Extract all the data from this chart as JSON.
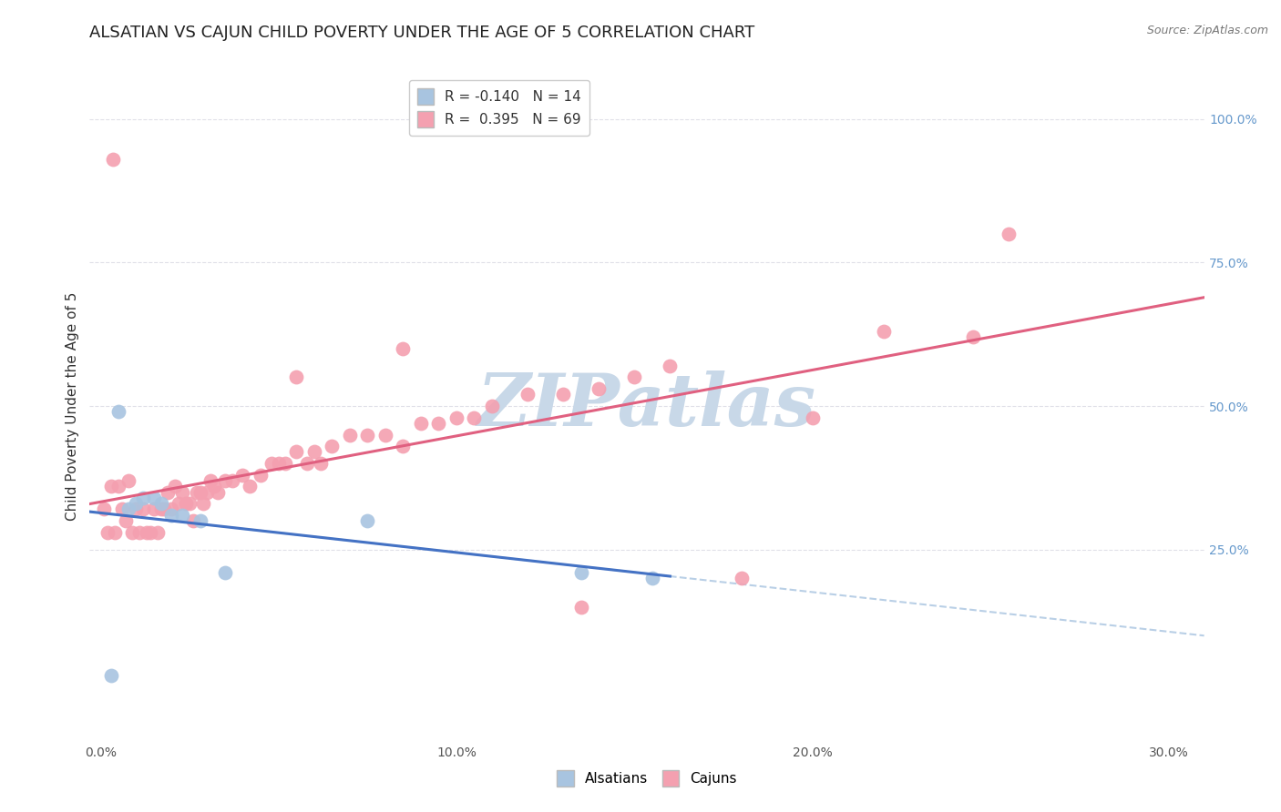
{
  "title": "ALSATIAN VS CAJUN CHILD POVERTY UNDER THE AGE OF 5 CORRELATION CHART",
  "source": "Source: ZipAtlas.com",
  "ylabel": "Child Poverty Under the Age of 5",
  "xlabel_ticks": [
    "0.0%",
    "10.0%",
    "20.0%",
    "30.0%"
  ],
  "xlabel_vals": [
    0.0,
    10.0,
    20.0,
    30.0
  ],
  "right_ytick_labels": [
    "100.0%",
    "75.0%",
    "50.0%",
    "25.0%"
  ],
  "right_ytick_vals": [
    100.0,
    75.0,
    50.0,
    25.0
  ],
  "xmin": -0.3,
  "xmax": 31.0,
  "ymin": -8.0,
  "ymax": 108.0,
  "alsatian_R": -0.14,
  "alsatian_N": 14,
  "cajun_R": 0.395,
  "cajun_N": 69,
  "alsatian_color": "#a8c4e0",
  "cajun_color": "#f4a0b0",
  "alsatian_trend_color": "#4472c4",
  "cajun_trend_color": "#e06080",
  "dashed_trend_color": "#a8c4e0",
  "watermark_color": "#c8d8e8",
  "watermark_text": "ZIPatlas",
  "alsatian_x": [
    0.3,
    0.5,
    0.8,
    1.0,
    1.2,
    1.5,
    1.7,
    2.0,
    2.3,
    2.8,
    3.5,
    7.5,
    13.5,
    15.5
  ],
  "alsatian_y": [
    3.0,
    49.0,
    32.0,
    33.0,
    34.0,
    34.0,
    33.0,
    31.0,
    31.0,
    30.0,
    21.0,
    30.0,
    21.0,
    20.0
  ],
  "cajun_x": [
    0.1,
    0.2,
    0.3,
    0.4,
    0.5,
    0.6,
    0.7,
    0.8,
    0.9,
    1.0,
    1.1,
    1.2,
    1.3,
    1.4,
    1.5,
    1.6,
    1.7,
    1.8,
    1.9,
    2.0,
    2.1,
    2.2,
    2.3,
    2.4,
    2.5,
    2.6,
    2.7,
    2.8,
    2.9,
    3.0,
    3.1,
    3.2,
    3.3,
    3.5,
    3.7,
    4.0,
    4.2,
    4.5,
    4.8,
    5.0,
    5.2,
    5.5,
    5.8,
    6.0,
    6.2,
    6.5,
    7.0,
    7.5,
    8.0,
    8.5,
    9.0,
    9.5,
    10.0,
    10.5,
    11.0,
    12.0,
    13.0,
    14.0,
    15.0,
    16.0,
    18.0,
    20.0,
    22.0,
    24.5,
    25.5,
    5.5,
    8.5,
    13.5,
    0.35
  ],
  "cajun_y": [
    32.0,
    28.0,
    36.0,
    28.0,
    36.0,
    32.0,
    30.0,
    37.0,
    28.0,
    32.0,
    28.0,
    32.0,
    28.0,
    28.0,
    32.0,
    28.0,
    32.0,
    32.0,
    35.0,
    32.0,
    36.0,
    33.0,
    35.0,
    33.0,
    33.0,
    30.0,
    35.0,
    35.0,
    33.0,
    35.0,
    37.0,
    36.0,
    35.0,
    37.0,
    37.0,
    38.0,
    36.0,
    38.0,
    40.0,
    40.0,
    40.0,
    42.0,
    40.0,
    42.0,
    40.0,
    43.0,
    45.0,
    45.0,
    45.0,
    43.0,
    47.0,
    47.0,
    48.0,
    48.0,
    50.0,
    52.0,
    52.0,
    53.0,
    55.0,
    57.0,
    20.0,
    48.0,
    63.0,
    62.0,
    80.0,
    55.0,
    60.0,
    15.0,
    93.0
  ],
  "background_color": "#ffffff",
  "grid_color": "#e0e0e8",
  "right_axis_color": "#6699cc",
  "title_fontsize": 13,
  "label_fontsize": 11,
  "tick_fontsize": 10,
  "legend_fontsize": 11
}
